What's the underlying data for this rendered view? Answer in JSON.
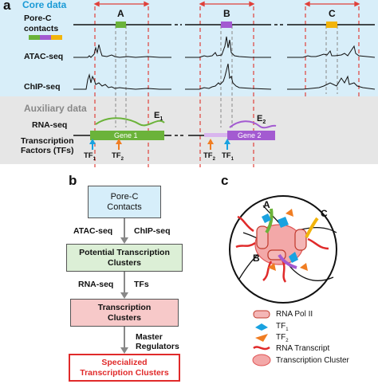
{
  "panel_a": {
    "letter": "a",
    "core_title": "Core data",
    "aux_title": "Auxiliary data",
    "rows": {
      "porec": "Pore-C\ncontacts",
      "porec_line1": "Pore-C",
      "porec_line2": "contacts",
      "atac": "ATAC-seq",
      "chip": "ChIP-seq",
      "rna": "RNA-seq",
      "tf_line1": "Transcription",
      "tf_line2": "Factors (TFs)"
    },
    "region_labels": [
      "A",
      "B",
      "C"
    ],
    "genes": [
      "Gene 1",
      "Gene 2"
    ],
    "enhancers": [
      {
        "base": "E",
        "sub": "1"
      },
      {
        "base": "E",
        "sub": "2"
      }
    ],
    "tf_labels": [
      {
        "base": "TF",
        "sub": "1"
      },
      {
        "base": "TF",
        "sub": "2"
      },
      {
        "base": "TF",
        "sub": "2"
      },
      {
        "base": "TF",
        "sub": "1"
      }
    ],
    "colors": {
      "core_bg": "#d8eef9",
      "aux_bg": "#e6e6e6",
      "region_red": "#e0403a",
      "gene1": "#6bb33a",
      "gene2": "#a35ad1",
      "contact_c": "#f2b40b",
      "tf1": "#19a2e0",
      "tf2": "#f07d22",
      "core_title": "#1a9ad6"
    }
  },
  "panel_b": {
    "letter": "b",
    "boxes": [
      "Pore-C\nContacts",
      "Potential Transcription\nClusters",
      "Transcription\nClusters",
      "Specialized\nTranscription Clusters"
    ],
    "box1_l1": "Pore-C",
    "box1_l2": "Contacts",
    "box2_l1": "Potential Transcription",
    "box2_l2": "Clusters",
    "box3_l1": "Transcription",
    "box3_l2": "Clusters",
    "box4_l1": "Specialized",
    "box4_l2": "Transcription Clusters",
    "arrow_labels": {
      "a1_left": "ATAC-seq",
      "a1_right": "ChIP-seq",
      "a2_left": "RNA-seq",
      "a2_right": "TFs",
      "a3_l1": "Master",
      "a3_l2": "Regulators"
    },
    "colors": {
      "box1": "#d6eefa",
      "box2": "#dcefd6",
      "box3": "#f7c9c9",
      "box4_border": "#e02a2a",
      "box4_text": "#e02a2a"
    }
  },
  "panel_c": {
    "letter": "c",
    "labels": [
      "A",
      "B",
      "C"
    ],
    "legend": [
      {
        "icon": "rna-pol-ii-icon",
        "text": "RNA Pol II"
      },
      {
        "icon": "tf1-icon",
        "text_base": "TF",
        "text_sub": "1"
      },
      {
        "icon": "tf2-icon",
        "text_base": "TF",
        "text_sub": "2"
      },
      {
        "icon": "rna-transcript-icon",
        "text": "RNA Transcript"
      },
      {
        "icon": "transcription-cluster-icon",
        "text": "Transcription Cluster"
      }
    ]
  }
}
